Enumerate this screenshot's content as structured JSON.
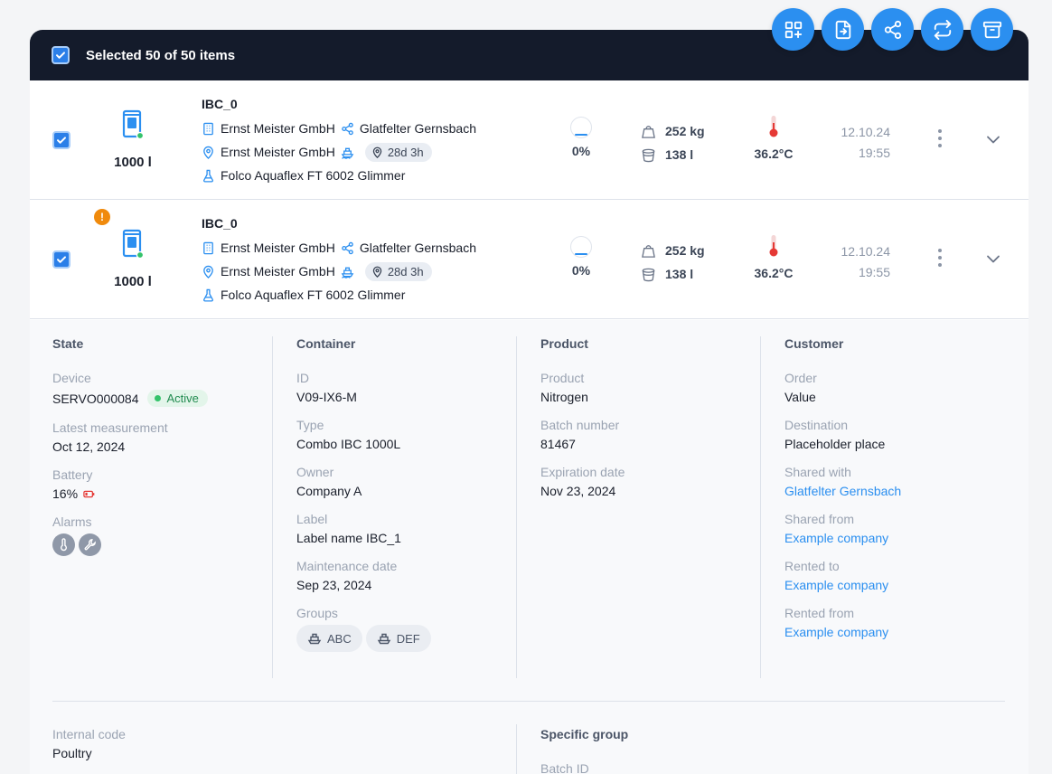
{
  "toolbar": {
    "selected_label": "Selected 50 of 50 items",
    "actions": [
      {
        "icon": "add-grid-icon"
      },
      {
        "icon": "export-file-icon"
      },
      {
        "icon": "share-icon"
      },
      {
        "icon": "transfer-icon"
      },
      {
        "icon": "archive-icon"
      }
    ]
  },
  "rows": [
    {
      "name": "IBC_0",
      "volume": "1000 l",
      "owner": "Ernst Meister GmbH",
      "shared_with": "Glatfelter Gernsbach",
      "location": "Ernst Meister GmbH",
      "location_duration": "28d 3h",
      "product": "Folco Aquaflex FT 6002 Glimmer",
      "fill_level": "0%",
      "weight": "252 kg",
      "liquid": "138 l",
      "temperature": "36.2°C",
      "date": "12.10.24",
      "time": "19:55",
      "warning": false
    },
    {
      "name": "IBC_0",
      "volume": "1000 l",
      "owner": "Ernst Meister GmbH",
      "shared_with": "Glatfelter Gernsbach",
      "location": "Ernst Meister GmbH",
      "location_duration": "28d 3h",
      "product": "Folco Aquaflex FT 6002 Glimmer",
      "fill_level": "0%",
      "weight": "252 kg",
      "liquid": "138 l",
      "temperature": "36.2°C",
      "date": "12.10.24",
      "time": "19:55",
      "warning": true,
      "warning_glyph": "!"
    }
  ],
  "details": {
    "state": {
      "heading": "State",
      "device_label": "Device",
      "device_value": "SERVO000084",
      "device_status": "Active",
      "latest_label": "Latest measurement",
      "latest_value": "Oct 12, 2024",
      "battery_label": "Battery",
      "battery_value": "16%",
      "alarms_label": "Alarms"
    },
    "container": {
      "heading": "Container",
      "id_label": "ID",
      "id_value": "V09-IX6-M",
      "type_label": "Type",
      "type_value": "Combo IBC 1000L",
      "owner_label": "Owner",
      "owner_value": "Company A",
      "label_label": "Label",
      "label_value": "Label name IBC_1",
      "maintenance_label": "Maintenance date",
      "maintenance_value": "Sep 23, 2024",
      "groups_label": "Groups",
      "groups": [
        "ABC",
        "DEF"
      ]
    },
    "product": {
      "heading": "Product",
      "product_label": "Product",
      "product_value": "Nitrogen",
      "batch_label": "Batch number",
      "batch_value": "81467",
      "expiration_label": "Expiration date",
      "expiration_value": "Nov 23, 2024"
    },
    "customer": {
      "heading": "Customer",
      "order_label": "Order",
      "order_value": "Value",
      "destination_label": "Destination",
      "destination_value": "Placeholder place",
      "shared_with_label": "Shared with",
      "shared_with_value": "Glatfelter Gernsbach",
      "shared_from_label": "Shared from",
      "shared_from_value": "Example company",
      "rented_to_label": "Rented to",
      "rented_to_value": "Example company",
      "rented_from_label": "Rented from",
      "rented_from_value": "Example company"
    },
    "internal_code_label": "Internal code",
    "internal_code_value": "Poultry",
    "specific_group_heading": "Specific group",
    "batch_id_label": "Batch ID"
  },
  "colors": {
    "accent": "#2b8ff0",
    "topbar": "#141b2b",
    "active_green": "#34c36b",
    "warning": "#f08a0c",
    "battery_low": "#e53935"
  }
}
